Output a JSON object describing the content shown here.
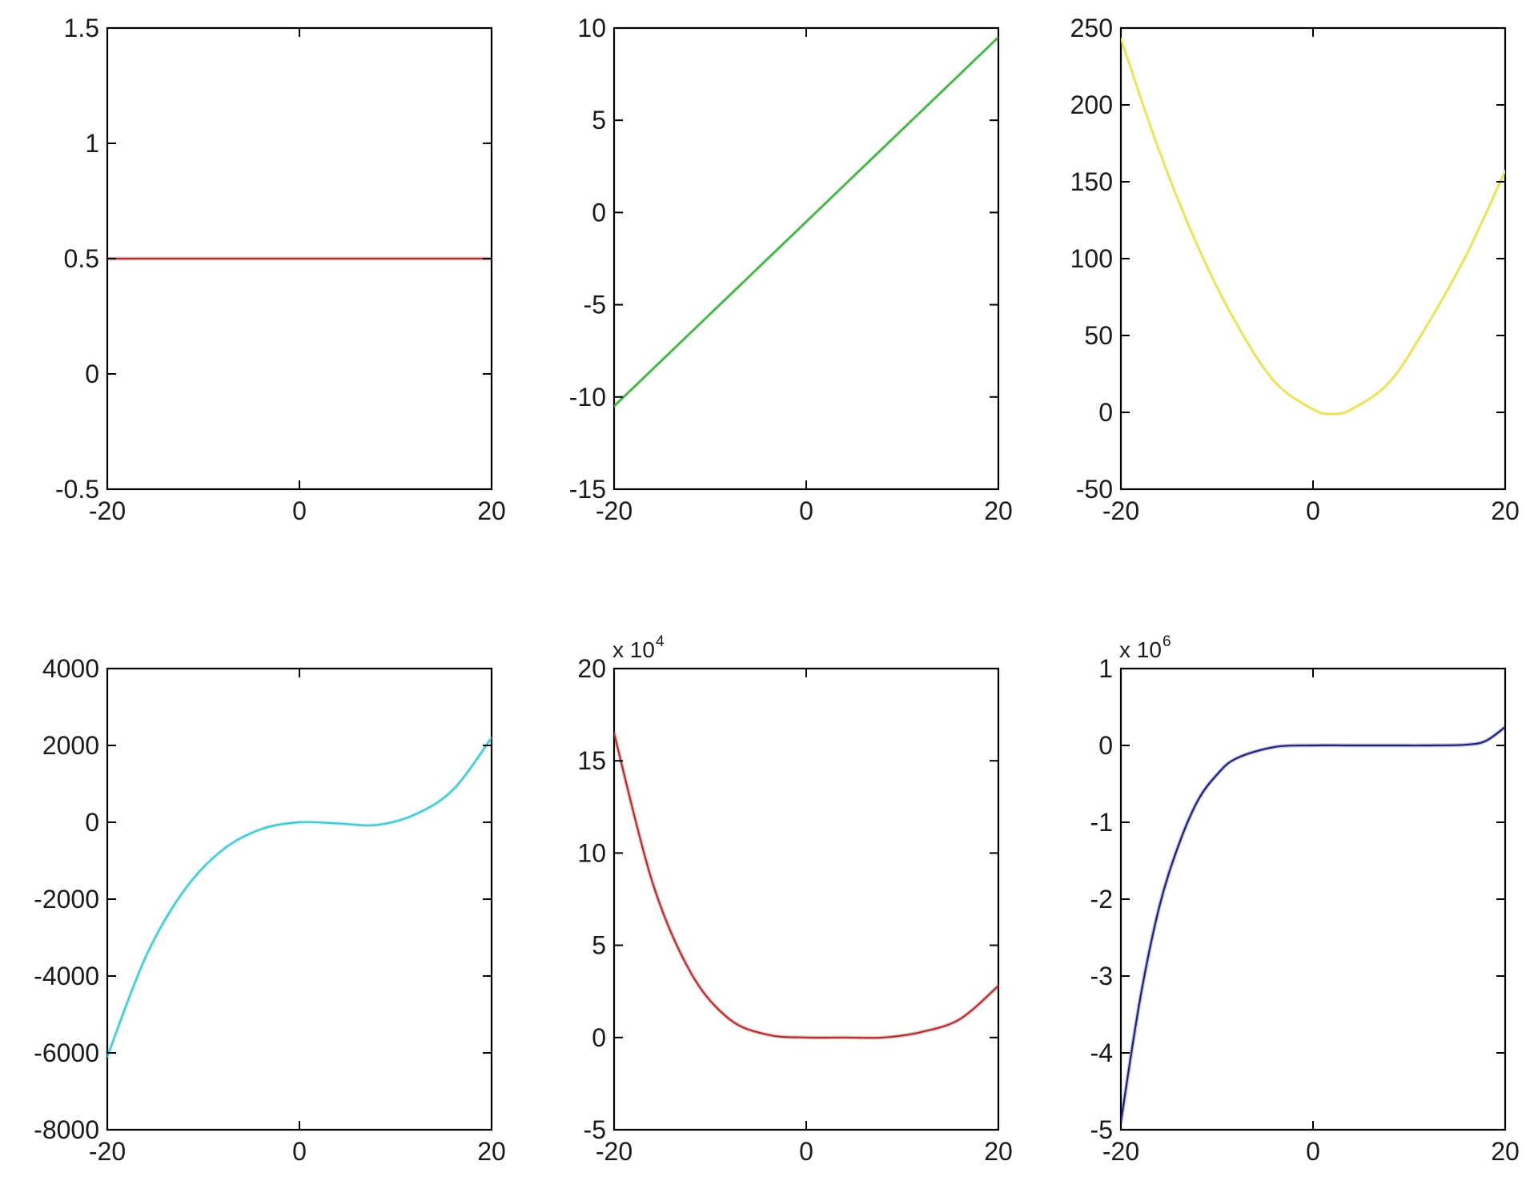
{
  "chart_data": [
    {
      "type": "line",
      "xlim": [
        -20,
        20
      ],
      "ylim": [
        -0.5,
        1.5
      ],
      "x_ticks": [
        -20,
        0,
        20
      ],
      "x_tick_labels": [
        "-20",
        "0",
        "20"
      ],
      "y_ticks": [
        -0.5,
        0,
        0.5,
        1,
        1.5
      ],
      "y_tick_labels": [
        "-0.5",
        "0",
        "0.5",
        "1",
        "1.5"
      ],
      "y_exponent": "",
      "color": "#b03030",
      "series": [
        {
          "x": [
            -20,
            -10,
            0,
            10,
            20
          ],
          "values": [
            0.5,
            0.5,
            0.5,
            0.5,
            0.5
          ]
        }
      ],
      "grid": false
    },
    {
      "type": "line",
      "xlim": [
        -20,
        20
      ],
      "ylim": [
        -15,
        10
      ],
      "x_ticks": [
        -20,
        0,
        20
      ],
      "x_tick_labels": [
        "-20",
        "0",
        "20"
      ],
      "y_ticks": [
        -15,
        -10,
        -5,
        0,
        5,
        10
      ],
      "y_tick_labels": [
        "-15",
        "-10",
        "-5",
        "0",
        "5",
        "10"
      ],
      "y_exponent": "",
      "color": "#3caa3c",
      "series": [
        {
          "x": [
            -20,
            -10,
            0,
            10,
            20
          ],
          "values": [
            -10.5,
            -5.5,
            -0.5,
            4.5,
            9.5
          ]
        }
      ],
      "grid": false
    },
    {
      "type": "line",
      "xlim": [
        -20,
        20
      ],
      "ylim": [
        -50,
        250
      ],
      "x_ticks": [
        -20,
        0,
        20
      ],
      "x_tick_labels": [
        "-20",
        "0",
        "20"
      ],
      "y_ticks": [
        -50,
        0,
        50,
        100,
        150,
        200,
        250
      ],
      "y_tick_labels": [
        "-50",
        "0",
        "50",
        "100",
        "150",
        "200",
        "250"
      ],
      "y_exponent": "",
      "color": "#e8e050",
      "series": [
        {
          "x": [
            -20,
            -16,
            -12,
            -8,
            -4,
            0,
            2,
            4,
            8,
            12,
            16,
            20
          ],
          "values": [
            243,
            170,
            108,
            58,
            20,
            2,
            -1,
            2,
            20,
            58,
            103,
            157
          ]
        }
      ],
      "grid": false
    },
    {
      "type": "line",
      "xlim": [
        -20,
        20
      ],
      "ylim": [
        -8000,
        4000
      ],
      "x_ticks": [
        -20,
        0,
        20
      ],
      "x_tick_labels": [
        "-20",
        "0",
        "20"
      ],
      "y_ticks": [
        -8000,
        -6000,
        -4000,
        -2000,
        0,
        2000,
        4000
      ],
      "y_tick_labels": [
        "-8000",
        "-6000",
        "-4000",
        "-2000",
        "0",
        "2000",
        "4000"
      ],
      "y_exponent": "",
      "color": "#40c8d0",
      "series": [
        {
          "x": [
            -20,
            -16,
            -12,
            -8,
            -4,
            0,
            4,
            8,
            12,
            16,
            20
          ],
          "values": [
            -6100,
            -3500,
            -1770,
            -720,
            -180,
            0,
            -30,
            -70,
            200,
            850,
            2200
          ]
        }
      ],
      "grid": false
    },
    {
      "type": "line",
      "xlim": [
        -20,
        20
      ],
      "ylim": [
        -5,
        20
      ],
      "x_ticks": [
        -20,
        0,
        20
      ],
      "x_tick_labels": [
        "-20",
        "0",
        "20"
      ],
      "y_ticks": [
        -5,
        0,
        5,
        10,
        15,
        20
      ],
      "y_tick_labels": [
        "-5",
        "0",
        "5",
        "10",
        "15",
        "20"
      ],
      "y_exponent": {
        "base": "x 10",
        "power": "4"
      },
      "color": "#b03030",
      "series": [
        {
          "x": [
            -20,
            -16,
            -12,
            -8,
            -4,
            0,
            4,
            8,
            12,
            16,
            20
          ],
          "values": [
            16.5,
            8.4,
            3.5,
            1.0,
            0.15,
            0,
            0,
            0,
            0.3,
            1.0,
            2.8
          ]
        }
      ],
      "grid": false
    },
    {
      "type": "line",
      "xlim": [
        -20,
        20
      ],
      "ylim": [
        -5,
        1
      ],
      "x_ticks": [
        -20,
        0,
        20
      ],
      "x_tick_labels": [
        "-20",
        "0",
        "20"
      ],
      "y_ticks": [
        -5,
        -4,
        -3,
        -2,
        -1,
        0,
        1
      ],
      "y_tick_labels": [
        "-5",
        "-4",
        "-3",
        "-2",
        "-1",
        "0",
        "1"
      ],
      "y_exponent": {
        "base": "x 10",
        "power": "6"
      },
      "color": "#20207a",
      "series": [
        {
          "x": [
            -20,
            -18,
            -16,
            -14,
            -12,
            -10,
            -8,
            -4,
            0,
            4,
            8,
            12,
            16,
            18,
            20
          ],
          "values": [
            -4.9,
            -3.3,
            -2.1,
            -1.3,
            -0.72,
            -0.38,
            -0.17,
            -0.02,
            0,
            0,
            0,
            0,
            0.01,
            0.06,
            0.24
          ]
        }
      ],
      "grid": false
    }
  ]
}
